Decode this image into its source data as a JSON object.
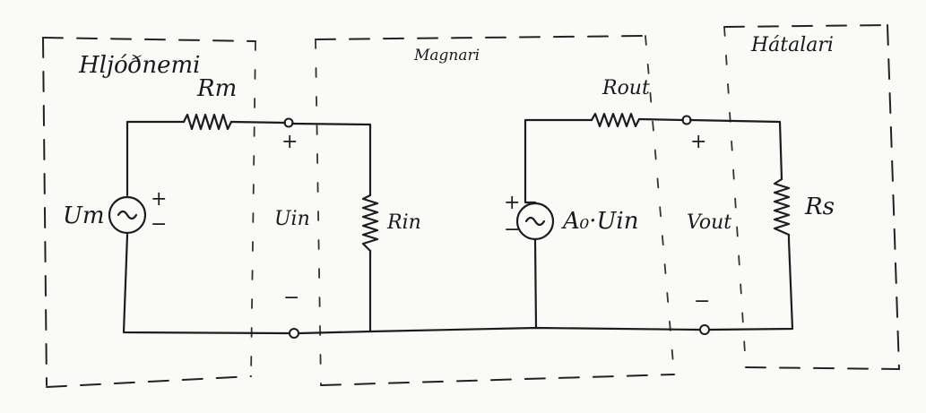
{
  "blocks": {
    "microphone": "Hljóðnemi",
    "amplifier": "Magnari",
    "speaker": "Hátalari"
  },
  "components": {
    "r_m": "Rm",
    "u_m": "Um",
    "u_in": "Uin",
    "r_in": "Rin",
    "r_out": "Rout",
    "dep_source": "A₀·Uin",
    "v_out": "Vout",
    "r_s": "Rs"
  },
  "signs": {
    "plus": "+",
    "minus": "−"
  },
  "colors": {
    "ink": "#1c1c1c",
    "paper": "#fafaf8"
  }
}
